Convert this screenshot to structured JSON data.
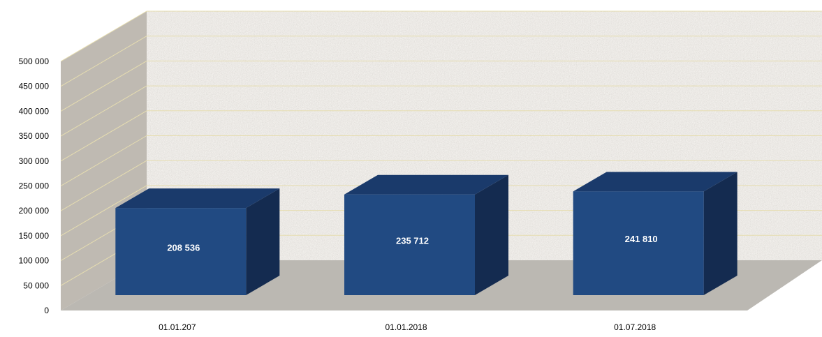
{
  "chart_data": {
    "type": "bar",
    "style": "3d-column",
    "categories": [
      "01.01.207",
      "01.01.2018",
      "01.07.2018"
    ],
    "series": [
      {
        "values": [
          208536,
          235712,
          241810
        ],
        "labels": [
          "208 536",
          "235 712",
          "241 810"
        ],
        "color": "#214a82"
      }
    ],
    "ylim": [
      0,
      500000
    ],
    "yticks": [
      0,
      50000,
      100000,
      150000,
      200000,
      250000,
      300000,
      350000,
      400000,
      450000,
      500000
    ],
    "ytick_labels": [
      "0",
      "50 000",
      "100 000",
      "150 000",
      "200 000",
      "250 000",
      "300 000",
      "350 000",
      "400 000",
      "450 000",
      "500 000"
    ],
    "grid": true,
    "legend": "none",
    "colors": {
      "bar_front": "#214a82",
      "bar_top": "#1a3a6b",
      "bar_side": "#142b50",
      "back_wall": "#d9d4cd",
      "side_wall": "#bfbab2",
      "floor": "#bbb8b2",
      "grid_line": "#e6ddb0"
    }
  }
}
